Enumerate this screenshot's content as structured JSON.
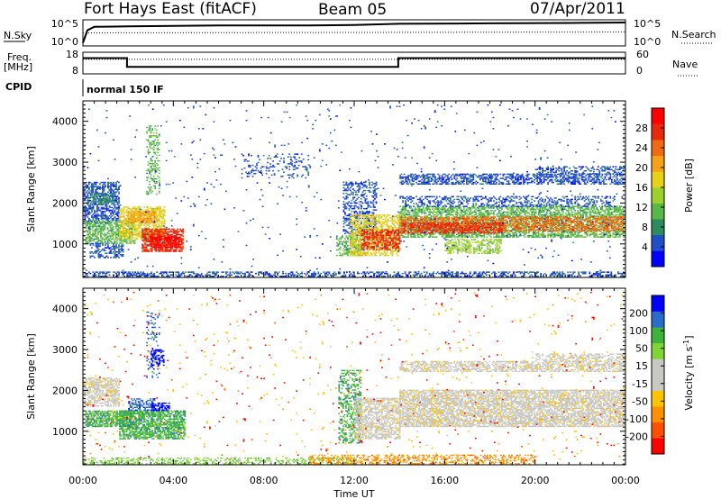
{
  "header": {
    "station": "Fort Hays East (fitACF)",
    "beam": "Beam 05",
    "date": "07/Apr/2011"
  },
  "chart_data": [
    {
      "type": "line",
      "panel": "noise",
      "left_label": "N.Sky",
      "right_label": "N.Search",
      "left_ticks": [
        "10^5",
        "10^0"
      ],
      "right_ticks": [
        "10^5",
        "10^0"
      ],
      "series": [
        {
          "name": "N.Sky",
          "style": "solid",
          "x": [
            0,
            0.2,
            0.5,
            2,
            6,
            10,
            12,
            14,
            18,
            22,
            24
          ],
          "y": [
            0.1,
            3,
            3.8,
            3.9,
            4.1,
            4.1,
            4.2,
            4.5,
            4.6,
            4.7,
            4.8
          ]
        },
        {
          "name": "N.Search",
          "style": "dotted",
          "x": [
            0,
            24
          ],
          "y": [
            2.4,
            2.6
          ]
        }
      ]
    },
    {
      "type": "line",
      "panel": "freq",
      "left_label": "Freq. [MHz]",
      "right_label": "Nave",
      "left_ticks": [
        "18",
        "8"
      ],
      "right_ticks": [
        "60",
        "0"
      ],
      "series": [
        {
          "name": "Freq",
          "style": "solid",
          "x": [
            0,
            1.95,
            1.95,
            13.95,
            13.95,
            24
          ],
          "y": [
            16.6,
            16.6,
            11.2,
            11.2,
            16.6,
            16.6
          ]
        },
        {
          "name": "Nave",
          "style": "dotted",
          "x": [
            0,
            24
          ],
          "y": [
            47,
            47
          ]
        }
      ]
    },
    {
      "type": "heatmap",
      "panel": "power",
      "ylabel": "Slant Range [km]",
      "yticks": [
        1000,
        2000,
        3000,
        4000
      ],
      "ylim": [
        180,
        4500
      ],
      "colorbar_label": "Power [dB]",
      "colorbar_ticks": [
        "28",
        "24",
        "20",
        "16",
        "12",
        "8",
        "4"
      ],
      "colors": [
        "#0000ff",
        "#1f4fc9",
        "#2c8c60",
        "#57b848",
        "#9bd12e",
        "#e8d11a",
        "#f7a11a",
        "#f06a14",
        "#e82a0c",
        "#ff0000"
      ],
      "blobs": [
        {
          "t": [
            0,
            1.6
          ],
          "r": [
            1500,
            2500
          ],
          "level": 1,
          "density": 0.55
        },
        {
          "t": [
            0.2,
            1.4
          ],
          "r": [
            1950,
            2250
          ],
          "level": 2,
          "density": 0.5
        },
        {
          "t": [
            0.1,
            2.3
          ],
          "r": [
            1000,
            1550
          ],
          "level": 3,
          "density": 0.6
        },
        {
          "t": [
            0.3,
            1.8
          ],
          "r": [
            650,
            1000
          ],
          "level": 1,
          "density": 0.45
        },
        {
          "t": [
            1.6,
            3.6
          ],
          "r": [
            1100,
            1900
          ],
          "level": 5,
          "density": 0.65
        },
        {
          "t": [
            2.0,
            3.2
          ],
          "r": [
            1500,
            1800
          ],
          "level": 6,
          "density": 0.6
        },
        {
          "t": [
            2.6,
            4.4
          ],
          "r": [
            800,
            1350
          ],
          "level": 8,
          "density": 0.75
        },
        {
          "t": [
            3.0,
            4.2
          ],
          "r": [
            900,
            1200
          ],
          "level": 9,
          "density": 0.65
        },
        {
          "t": [
            2.8,
            3.4
          ],
          "r": [
            2200,
            3900
          ],
          "level": 3,
          "density": 0.3
        },
        {
          "t": [
            7.0,
            10.0
          ],
          "r": [
            2600,
            3200
          ],
          "level": 1,
          "density": 0.2
        },
        {
          "t": [
            11.2,
            12.3
          ],
          "r": [
            700,
            1200
          ],
          "level": 3,
          "density": 0.5
        },
        {
          "t": [
            11.5,
            13.0
          ],
          "r": [
            1200,
            2500
          ],
          "level": 1,
          "density": 0.4
        },
        {
          "t": [
            11.8,
            14.0
          ],
          "r": [
            700,
            1700
          ],
          "level": 5,
          "density": 0.55
        },
        {
          "t": [
            12.3,
            14.0
          ],
          "r": [
            850,
            1350
          ],
          "level": 8,
          "density": 0.6
        },
        {
          "t": [
            14.0,
            24.0
          ],
          "r": [
            1150,
            1900
          ],
          "level": 3,
          "density": 0.6
        },
        {
          "t": [
            14.0,
            24.0
          ],
          "r": [
            1300,
            1650
          ],
          "level": 7,
          "density": 0.55
        },
        {
          "t": [
            14.0,
            18.5
          ],
          "r": [
            1250,
            1500
          ],
          "level": 8,
          "density": 0.6
        },
        {
          "t": [
            14.0,
            23.5
          ],
          "r": [
            1900,
            2150
          ],
          "level": 1,
          "density": 0.35
        },
        {
          "t": [
            16.0,
            18.5
          ],
          "r": [
            750,
            1100
          ],
          "level": 4,
          "density": 0.5
        },
        {
          "t": [
            14.0,
            24.0
          ],
          "r": [
            2450,
            2700
          ],
          "level": 1,
          "density": 0.55
        },
        {
          "t": [
            20.0,
            24.0
          ],
          "r": [
            2700,
            2900
          ],
          "level": 1,
          "density": 0.4
        },
        {
          "t": [
            0,
            24.0
          ],
          "r": [
            190,
            320
          ],
          "level": 1,
          "density": 0.45
        },
        {
          "t": [
            0,
            24.0
          ],
          "r": [
            300,
            4400
          ],
          "level": 1,
          "density": 0.012
        }
      ]
    },
    {
      "type": "heatmap",
      "panel": "velocity",
      "ylabel": "Slant Range [km]",
      "yticks": [
        1000,
        2000,
        3000,
        4000
      ],
      "ylim": [
        180,
        4500
      ],
      "xlabel": "Time UT",
      "xticks": [
        "00:00",
        "04:00",
        "08:00",
        "12:00",
        "16:00",
        "20:00",
        "00:00"
      ],
      "xlim": [
        0,
        24
      ],
      "colorbar_label": "Velocity [m s^-1]",
      "colorbar_ticks": [
        "200",
        "100",
        "50",
        "15",
        "-15",
        "-50",
        "-100",
        "-200"
      ],
      "colors": [
        "#ff0000",
        "#ff5000",
        "#ff9000",
        "#ffc400",
        "#c8c8c4",
        "#c8c8c4",
        "#7fd436",
        "#3cb43c",
        "#2a6cc9",
        "#0000ff"
      ],
      "blobs": [
        {
          "t": [
            0,
            1.6
          ],
          "r": [
            1600,
            2300
          ],
          "level": 4,
          "density": 0.65
        },
        {
          "t": [
            0.1,
            2.2
          ],
          "r": [
            1100,
            1500
          ],
          "level": 7,
          "density": 0.7
        },
        {
          "t": [
            1.6,
            4.5
          ],
          "r": [
            800,
            1500
          ],
          "level": 7,
          "density": 0.7
        },
        {
          "t": [
            2.0,
            3.2
          ],
          "r": [
            1500,
            1800
          ],
          "level": 8,
          "density": 0.5
        },
        {
          "t": [
            3.0,
            3.8
          ],
          "r": [
            1500,
            1700
          ],
          "level": 9,
          "density": 0.7
        },
        {
          "t": [
            2.8,
            3.4
          ],
          "r": [
            2300,
            3900
          ],
          "level": 8,
          "density": 0.2
        },
        {
          "t": [
            3.0,
            3.6
          ],
          "r": [
            2600,
            3000
          ],
          "level": 9,
          "density": 0.5
        },
        {
          "t": [
            11.3,
            12.3
          ],
          "r": [
            700,
            2500
          ],
          "level": 7,
          "density": 0.4
        },
        {
          "t": [
            12.0,
            14.0
          ],
          "r": [
            800,
            1800
          ],
          "level": 4,
          "density": 0.6
        },
        {
          "t": [
            14.0,
            24.0
          ],
          "r": [
            1100,
            2000
          ],
          "level": 4,
          "density": 0.7
        },
        {
          "t": [
            14.0,
            24.0
          ],
          "r": [
            2450,
            2700
          ],
          "level": 4,
          "density": 0.55
        },
        {
          "t": [
            20.0,
            24.0
          ],
          "r": [
            2700,
            2900
          ],
          "level": 4,
          "density": 0.4
        },
        {
          "t": [
            0,
            12.0
          ],
          "r": [
            190,
            330
          ],
          "level": 6,
          "density": 0.4
        },
        {
          "t": [
            10.0,
            20.0
          ],
          "r": [
            190,
            400
          ],
          "level": 2,
          "density": 0.4
        },
        {
          "t": [
            0,
            24.0
          ],
          "r": [
            300,
            4400
          ],
          "level": 3,
          "density": 0.01
        },
        {
          "t": [
            0,
            24.0
          ],
          "r": [
            300,
            4400
          ],
          "level": 0,
          "density": 0.006
        }
      ]
    }
  ],
  "cpid": {
    "label": "CPID",
    "program": "normal 150 IF"
  }
}
